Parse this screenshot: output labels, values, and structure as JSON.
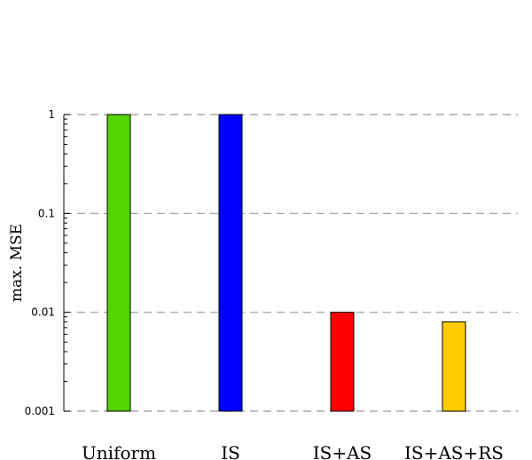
{
  "chart_data": {
    "type": "bar",
    "title": "",
    "xlabel": "",
    "ylabel": "max. MSE",
    "yscale": "log",
    "ylim": [
      0.001,
      1
    ],
    "yticks": [
      0.001,
      0.01,
      0.1,
      1
    ],
    "ytick_labels": [
      "0.001",
      "0.01",
      "0.1",
      "1"
    ],
    "grid": "horizontal-dashed",
    "categories": [
      "Uniform",
      "IS",
      "IS+AS",
      "IS+AS+RS"
    ],
    "values": [
      1,
      1,
      0.01,
      0.008
    ],
    "colors": [
      "#55d400",
      "#0000ff",
      "#ff0000",
      "#ffcc00"
    ]
  }
}
